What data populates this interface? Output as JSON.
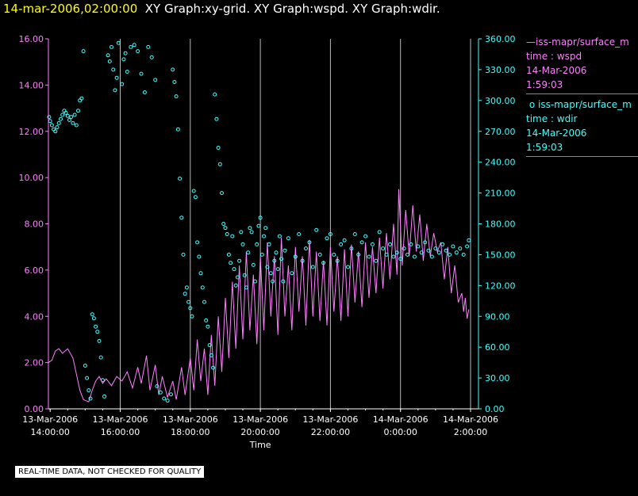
{
  "header": {
    "date": "14-mar-2006,02:00:00",
    "graphs": "XY Graph:xy-grid.  XY Graph:wspd.  XY Graph:wdir."
  },
  "legend": {
    "series1": {
      "name": "iss-mapr/surface_m",
      "line2": "time : wspd",
      "line3": "14-Mar-2006",
      "line4": "1:59:03"
    },
    "series2": {
      "name": "iss-mapr/surface_m",
      "line2": "time : wdir",
      "line3": "14-Mar-2006",
      "line4": "1:59:03"
    }
  },
  "footer": {
    "disclaimer": "REAL-TIME DATA, NOT CHECKED FOR QUALITY"
  },
  "colors": {
    "wspd": "#ff80ff",
    "wdir": "#40ffff",
    "grid": "#ffffff",
    "title_date": "#ffff00"
  },
  "chart_data": {
    "type": "line",
    "xlabel": "Time",
    "x_range_hours": [
      13.95,
      26.0
    ],
    "x_ticks": [
      {
        "h": 14,
        "l1": "13-Mar-2006",
        "l2": "14:00:00"
      },
      {
        "h": 16,
        "l1": "13-Mar-2006",
        "l2": "16:00:00"
      },
      {
        "h": 18,
        "l1": "13-Mar-2006",
        "l2": "18:00:00"
      },
      {
        "h": 20,
        "l1": "13-Mar-2006",
        "l2": "20:00:00"
      },
      {
        "h": 22,
        "l1": "13-Mar-2006",
        "l2": "22:00:00"
      },
      {
        "h": 24,
        "l1": "14-Mar-2006",
        "l2": "0:00:00"
      },
      {
        "h": 26,
        "l1": "14-Mar-2006",
        "l2": "2:00:00"
      }
    ],
    "y_left": {
      "range": [
        0,
        16
      ],
      "ticks": [
        "0.00",
        "2.00",
        "4.00",
        "6.00",
        "8.00",
        "10.00",
        "12.00",
        "14.00",
        "16.00"
      ]
    },
    "y_right": {
      "range": [
        0,
        360
      ],
      "ticks": [
        "0.00",
        "30.00",
        "60.00",
        "90.00",
        "120.00",
        "150.00",
        "180.00",
        "210.00",
        "240.00",
        "270.00",
        "300.00",
        "330.00",
        "360.00"
      ]
    },
    "series": [
      {
        "name": "time : wspd",
        "axis": "left",
        "style": "line",
        "points": [
          [
            13.95,
            2.0
          ],
          [
            14.05,
            2.1
          ],
          [
            14.15,
            2.5
          ],
          [
            14.25,
            2.6
          ],
          [
            14.35,
            2.4
          ],
          [
            14.5,
            2.6
          ],
          [
            14.65,
            2.2
          ],
          [
            14.75,
            1.5
          ],
          [
            14.85,
            0.8
          ],
          [
            14.95,
            0.4
          ],
          [
            15.1,
            0.3
          ],
          [
            15.2,
            0.8
          ],
          [
            15.3,
            1.2
          ],
          [
            15.4,
            1.4
          ],
          [
            15.5,
            1.1
          ],
          [
            15.6,
            1.3
          ],
          [
            15.75,
            1.0
          ],
          [
            15.9,
            1.4
          ],
          [
            16.05,
            1.2
          ],
          [
            16.2,
            1.6
          ],
          [
            16.35,
            0.9
          ],
          [
            16.5,
            1.8
          ],
          [
            16.6,
            1.1
          ],
          [
            16.75,
            2.3
          ],
          [
            16.85,
            0.8
          ],
          [
            17.0,
            1.9
          ],
          [
            17.1,
            0.6
          ],
          [
            17.2,
            1.4
          ],
          [
            17.35,
            0.5
          ],
          [
            17.5,
            1.2
          ],
          [
            17.6,
            0.4
          ],
          [
            17.75,
            1.8
          ],
          [
            17.85,
            0.6
          ],
          [
            18.0,
            2.2
          ],
          [
            18.1,
            0.8
          ],
          [
            18.2,
            3.0
          ],
          [
            18.3,
            1.2
          ],
          [
            18.4,
            2.6
          ],
          [
            18.5,
            0.6
          ],
          [
            18.6,
            3.2
          ],
          [
            18.7,
            1.0
          ],
          [
            18.8,
            4.0
          ],
          [
            18.9,
            1.6
          ],
          [
            19.0,
            4.8
          ],
          [
            19.1,
            2.2
          ],
          [
            19.2,
            5.5
          ],
          [
            19.3,
            2.6
          ],
          [
            19.4,
            6.2
          ],
          [
            19.5,
            3.0
          ],
          [
            19.6,
            6.8
          ],
          [
            19.7,
            3.4
          ],
          [
            19.8,
            5.8
          ],
          [
            19.9,
            2.8
          ],
          [
            20.0,
            6.6
          ],
          [
            20.1,
            3.4
          ],
          [
            20.2,
            7.2
          ],
          [
            20.3,
            4.0
          ],
          [
            20.4,
            6.6
          ],
          [
            20.5,
            3.2
          ],
          [
            20.6,
            7.4
          ],
          [
            20.7,
            4.0
          ],
          [
            20.8,
            6.2
          ],
          [
            20.9,
            3.4
          ],
          [
            21.0,
            7.0
          ],
          [
            21.1,
            4.2
          ],
          [
            21.2,
            6.6
          ],
          [
            21.3,
            3.6
          ],
          [
            21.4,
            7.3
          ],
          [
            21.5,
            4.0
          ],
          [
            21.6,
            6.8
          ],
          [
            21.7,
            3.8
          ],
          [
            21.8,
            6.4
          ],
          [
            21.9,
            3.6
          ],
          [
            22.0,
            7.0
          ],
          [
            22.1,
            4.2
          ],
          [
            22.2,
            6.6
          ],
          [
            22.3,
            3.8
          ],
          [
            22.4,
            6.9
          ],
          [
            22.5,
            4.0
          ],
          [
            22.6,
            7.1
          ],
          [
            22.7,
            4.6
          ],
          [
            22.8,
            6.8
          ],
          [
            22.9,
            4.4
          ],
          [
            23.0,
            7.2
          ],
          [
            23.1,
            4.8
          ],
          [
            23.2,
            7.0
          ],
          [
            23.3,
            5.0
          ],
          [
            23.4,
            7.4
          ],
          [
            23.5,
            5.2
          ],
          [
            23.6,
            7.6
          ],
          [
            23.7,
            5.6
          ],
          [
            23.8,
            8.0
          ],
          [
            23.9,
            5.8
          ],
          [
            23.95,
            9.5
          ],
          [
            24.05,
            6.2
          ],
          [
            24.15,
            8.6
          ],
          [
            24.25,
            6.6
          ],
          [
            24.35,
            8.8
          ],
          [
            24.45,
            6.8
          ],
          [
            24.55,
            8.4
          ],
          [
            24.65,
            6.4
          ],
          [
            24.75,
            8.0
          ],
          [
            24.85,
            6.6
          ],
          [
            24.95,
            7.6
          ],
          [
            25.05,
            6.8
          ],
          [
            25.15,
            7.2
          ],
          [
            25.25,
            5.6
          ],
          [
            25.35,
            7.0
          ],
          [
            25.45,
            5.0
          ],
          [
            25.55,
            6.2
          ],
          [
            25.65,
            4.6
          ],
          [
            25.75,
            5.0
          ],
          [
            25.8,
            4.2
          ],
          [
            25.85,
            4.8
          ],
          [
            25.9,
            3.9
          ],
          [
            25.95,
            4.3
          ]
        ]
      },
      {
        "name": "time : wdir",
        "axis": "right",
        "style": "points",
        "points": [
          [
            13.97,
            284
          ],
          [
            14.0,
            280
          ],
          [
            14.05,
            276
          ],
          [
            14.1,
            272
          ],
          [
            14.15,
            270
          ],
          [
            14.2,
            274
          ],
          [
            14.25,
            278
          ],
          [
            14.3,
            282
          ],
          [
            14.35,
            286
          ],
          [
            14.4,
            290
          ],
          [
            14.45,
            288
          ],
          [
            14.5,
            285
          ],
          [
            14.55,
            281
          ],
          [
            14.6,
            284
          ],
          [
            14.65,
            278
          ],
          [
            14.7,
            286
          ],
          [
            14.75,
            276
          ],
          [
            14.8,
            290
          ],
          [
            14.85,
            300
          ],
          [
            14.9,
            302
          ],
          [
            14.95,
            348
          ],
          [
            15.0,
            42
          ],
          [
            15.05,
            30
          ],
          [
            15.1,
            18
          ],
          [
            15.15,
            10
          ],
          [
            15.2,
            92
          ],
          [
            15.25,
            88
          ],
          [
            15.3,
            80
          ],
          [
            15.35,
            75
          ],
          [
            15.4,
            66
          ],
          [
            15.45,
            50
          ],
          [
            15.5,
            28
          ],
          [
            15.55,
            12
          ],
          [
            15.65,
            344
          ],
          [
            15.7,
            338
          ],
          [
            15.75,
            352
          ],
          [
            15.8,
            330
          ],
          [
            15.85,
            310
          ],
          [
            15.9,
            322
          ],
          [
            15.95,
            356
          ],
          [
            16.05,
            316
          ],
          [
            16.1,
            340
          ],
          [
            16.15,
            346
          ],
          [
            16.2,
            328
          ],
          [
            16.3,
            352
          ],
          [
            16.4,
            354
          ],
          [
            16.5,
            348
          ],
          [
            16.6,
            326
          ],
          [
            16.7,
            308
          ],
          [
            16.8,
            352
          ],
          [
            16.9,
            342
          ],
          [
            17.0,
            320
          ],
          [
            17.05,
            22
          ],
          [
            17.15,
            16
          ],
          [
            17.25,
            10
          ],
          [
            17.35,
            8
          ],
          [
            17.45,
            14
          ],
          [
            17.5,
            330
          ],
          [
            17.55,
            318
          ],
          [
            17.6,
            304
          ],
          [
            17.65,
            272
          ],
          [
            17.7,
            224
          ],
          [
            17.75,
            186
          ],
          [
            17.8,
            150
          ],
          [
            17.85,
            112
          ],
          [
            17.9,
            118
          ],
          [
            17.95,
            104
          ],
          [
            18.0,
            98
          ],
          [
            18.05,
            90
          ],
          [
            18.1,
            212
          ],
          [
            18.15,
            206
          ],
          [
            18.2,
            162
          ],
          [
            18.25,
            148
          ],
          [
            18.3,
            132
          ],
          [
            18.35,
            118
          ],
          [
            18.4,
            104
          ],
          [
            18.45,
            86
          ],
          [
            18.5,
            80
          ],
          [
            18.55,
            62
          ],
          [
            18.6,
            52
          ],
          [
            18.65,
            40
          ],
          [
            18.7,
            306
          ],
          [
            18.75,
            282
          ],
          [
            18.8,
            254
          ],
          [
            18.85,
            238
          ],
          [
            18.9,
            210
          ],
          [
            18.95,
            180
          ],
          [
            19.0,
            176
          ],
          [
            19.05,
            170
          ],
          [
            19.1,
            150
          ],
          [
            19.15,
            142
          ],
          [
            19.2,
            168
          ],
          [
            19.25,
            136
          ],
          [
            19.3,
            120
          ],
          [
            19.35,
            128
          ],
          [
            19.4,
            144
          ],
          [
            19.45,
            172
          ],
          [
            19.5,
            160
          ],
          [
            19.55,
            130
          ],
          [
            19.6,
            118
          ],
          [
            19.65,
            152
          ],
          [
            19.7,
            176
          ],
          [
            19.75,
            172
          ],
          [
            19.8,
            140
          ],
          [
            19.85,
            124
          ],
          [
            19.9,
            160
          ],
          [
            19.95,
            178
          ],
          [
            20.0,
            186
          ],
          [
            20.05,
            150
          ],
          [
            20.1,
            168
          ],
          [
            20.15,
            176
          ],
          [
            20.2,
            138
          ],
          [
            20.25,
            160
          ],
          [
            20.3,
            132
          ],
          [
            20.35,
            124
          ],
          [
            20.4,
            144
          ],
          [
            20.45,
            152
          ],
          [
            20.5,
            136
          ],
          [
            20.55,
            168
          ],
          [
            20.6,
            146
          ],
          [
            20.65,
            124
          ],
          [
            20.7,
            154
          ],
          [
            20.8,
            166
          ],
          [
            20.9,
            132
          ],
          [
            21.0,
            148
          ],
          [
            21.1,
            170
          ],
          [
            21.2,
            144
          ],
          [
            21.3,
            156
          ],
          [
            21.4,
            162
          ],
          [
            21.5,
            138
          ],
          [
            21.6,
            174
          ],
          [
            21.7,
            150
          ],
          [
            21.8,
            142
          ],
          [
            21.9,
            166
          ],
          [
            22.0,
            170
          ],
          [
            22.1,
            150
          ],
          [
            22.2,
            144
          ],
          [
            22.3,
            160
          ],
          [
            22.4,
            164
          ],
          [
            22.5,
            138
          ],
          [
            22.6,
            156
          ],
          [
            22.7,
            170
          ],
          [
            22.8,
            150
          ],
          [
            22.9,
            162
          ],
          [
            23.0,
            168
          ],
          [
            23.1,
            148
          ],
          [
            23.2,
            160
          ],
          [
            23.3,
            144
          ],
          [
            23.4,
            172
          ],
          [
            23.5,
            156
          ],
          [
            23.6,
            150
          ],
          [
            23.7,
            160
          ],
          [
            23.8,
            148
          ],
          [
            23.9,
            152
          ],
          [
            24.0,
            146
          ],
          [
            24.1,
            156
          ],
          [
            24.2,
            150
          ],
          [
            24.3,
            160
          ],
          [
            24.4,
            148
          ],
          [
            24.5,
            158
          ],
          [
            24.6,
            152
          ],
          [
            24.7,
            162
          ],
          [
            24.8,
            154
          ],
          [
            24.9,
            148
          ],
          [
            25.0,
            156
          ],
          [
            25.1,
            152
          ],
          [
            25.2,
            160
          ],
          [
            25.3,
            154
          ],
          [
            25.4,
            150
          ],
          [
            25.5,
            158
          ],
          [
            25.6,
            152
          ],
          [
            25.7,
            156
          ],
          [
            25.8,
            150
          ],
          [
            25.9,
            158
          ],
          [
            25.95,
            164
          ]
        ]
      }
    ]
  }
}
